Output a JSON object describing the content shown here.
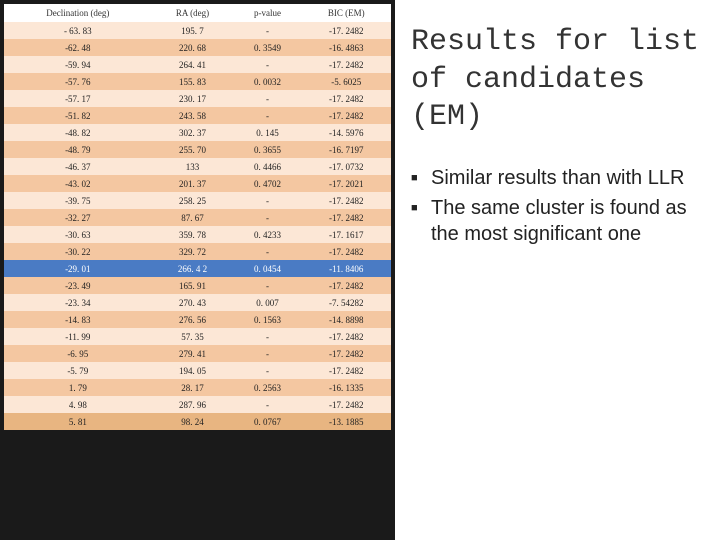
{
  "title": "Results for list of candidates (EM)",
  "bullets": [
    "Similar results than with LLR",
    "The same cluster is found as the most significant one"
  ],
  "table": {
    "columns": [
      "Declination (deg)",
      "RA (deg)",
      "p-value",
      "BIC (EM)"
    ],
    "rows": [
      {
        "c": [
          "- 63. 83",
          "195. 7",
          "-",
          "-17. 2482"
        ],
        "cls": "row-light"
      },
      {
        "c": [
          "-62. 48",
          "220. 68",
          "0. 3549",
          "-16. 4863"
        ],
        "cls": "row-dark"
      },
      {
        "c": [
          "-59. 94",
          "264. 41",
          "-",
          "-17. 2482"
        ],
        "cls": "row-light"
      },
      {
        "c": [
          "-57. 76",
          "155. 83",
          "0. 0032",
          "-5. 6025"
        ],
        "cls": "row-dark"
      },
      {
        "c": [
          "-57. 17",
          "230. 17",
          "-",
          "-17. 2482"
        ],
        "cls": "row-light"
      },
      {
        "c": [
          "-51. 82",
          "243. 58",
          "-",
          "-17. 2482"
        ],
        "cls": "row-dark"
      },
      {
        "c": [
          "-48. 82",
          "302. 37",
          "0. 145",
          "-14. 5976"
        ],
        "cls": "row-light"
      },
      {
        "c": [
          "-48. 79",
          "255. 70",
          "0. 3655",
          "-16. 7197"
        ],
        "cls": "row-dark"
      },
      {
        "c": [
          "-46. 37",
          "133",
          "0. 4466",
          "-17. 0732"
        ],
        "cls": "row-light"
      },
      {
        "c": [
          "-43. 02",
          "201. 37",
          "0. 4702",
          "-17. 2021"
        ],
        "cls": "row-dark"
      },
      {
        "c": [
          "-39. 75",
          "258. 25",
          "-",
          "-17. 2482"
        ],
        "cls": "row-light"
      },
      {
        "c": [
          "-32. 27",
          "87. 67",
          "-",
          "-17. 2482"
        ],
        "cls": "row-dark"
      },
      {
        "c": [
          "-30. 63",
          "359. 78",
          "0. 4233",
          "-17. 1617"
        ],
        "cls": "row-light"
      },
      {
        "c": [
          "-30. 22",
          "329. 72",
          "-",
          "-17. 2482"
        ],
        "cls": "row-dark"
      },
      {
        "c": [
          "-29. 01",
          "266. 4 2",
          "0. 0454",
          "-11. 8406"
        ],
        "cls": "row-blue"
      },
      {
        "c": [
          "-23. 49",
          "165. 91",
          "-",
          "-17. 2482"
        ],
        "cls": "row-dark"
      },
      {
        "c": [
          "-23. 34",
          "270. 43",
          "0. 007",
          "-7. 54282"
        ],
        "cls": "row-light"
      },
      {
        "c": [
          "-14. 83",
          "276. 56",
          "0. 1563",
          "-14. 8898"
        ],
        "cls": "row-dark"
      },
      {
        "c": [
          "-11. 99",
          "57. 35",
          "-",
          "-17. 2482"
        ],
        "cls": "row-light"
      },
      {
        "c": [
          "-6. 95",
          "279. 41",
          "-",
          "-17. 2482"
        ],
        "cls": "row-dark"
      },
      {
        "c": [
          "-5. 79",
          "194. 05",
          "-",
          "-17. 2482"
        ],
        "cls": "row-light"
      },
      {
        "c": [
          "1. 79",
          "28. 17",
          "0. 2563",
          "-16. 1335"
        ],
        "cls": "row-dark"
      },
      {
        "c": [
          "4. 98",
          "287. 96",
          "-",
          "-17. 2482"
        ],
        "cls": "row-light"
      },
      {
        "c": [
          "5. 81",
          "98. 24",
          "0. 0767",
          "-13. 1885"
        ],
        "cls": "row-dark2"
      }
    ]
  },
  "colors": {
    "page_bg": "#1a1a1a",
    "panel_bg": "#ffffff",
    "row_light": "#fce7d6",
    "row_dark": "#f4c7a1",
    "row_blue": "#4a7bc4"
  }
}
